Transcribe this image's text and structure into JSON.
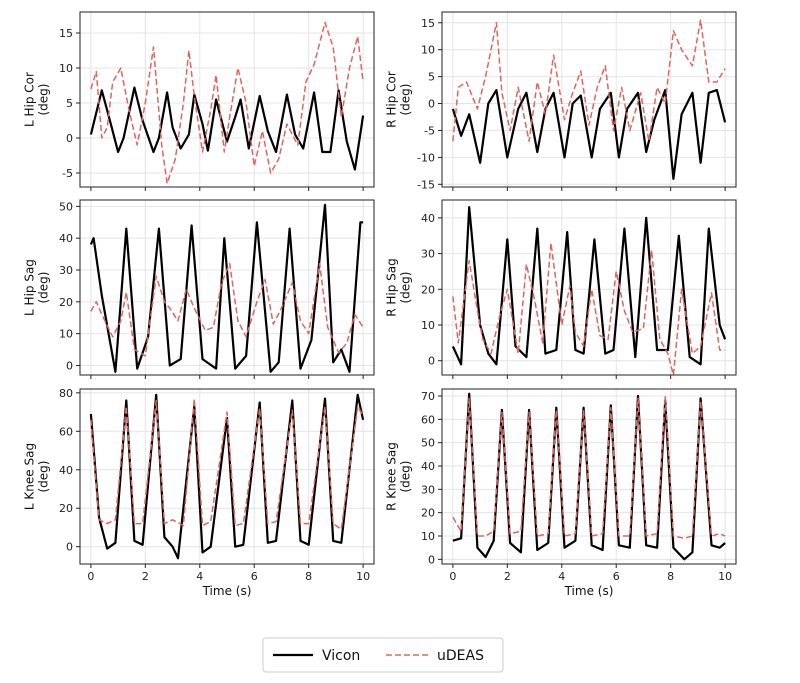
{
  "colors": {
    "vicon": "#000000",
    "udeas": "#e0665c",
    "grid": "#e4e4e4",
    "frame": "#222222"
  },
  "legend": {
    "placement": "bottom-center",
    "entries": [
      "Vicon",
      "uDEAS"
    ]
  },
  "chart_data": [
    {
      "type": "line",
      "panel": "L Hip Cor",
      "ylabel": [
        "L Hip Cor",
        "(deg)"
      ],
      "xlabel": "",
      "xlim": [
        -0.4,
        10.4
      ],
      "ylim": [
        -7,
        18
      ],
      "xticks": [
        0,
        2,
        4,
        6,
        8,
        10
      ],
      "yticks": [
        -5,
        0,
        5,
        10,
        15
      ],
      "series": [
        {
          "name": "Vicon",
          "style": "solid",
          "x": [
            0,
            0.4,
            0.7,
            1.0,
            1.2,
            1.6,
            1.9,
            2.3,
            2.5,
            2.8,
            3.0,
            3.3,
            3.6,
            3.8,
            4.1,
            4.3,
            4.6,
            5.0,
            5.3,
            5.5,
            5.8,
            6.2,
            6.5,
            6.8,
            7.2,
            7.5,
            7.8,
            8.2,
            8.5,
            8.8,
            9.1,
            9.4,
            9.7,
            10
          ],
          "y": [
            0.5,
            6.8,
            2.5,
            -2,
            0,
            7.2,
            2.5,
            -2,
            0,
            6.5,
            1.5,
            -1.5,
            0.5,
            6.2,
            2,
            -1.8,
            5.5,
            -0.5,
            3,
            5.5,
            -1.5,
            6,
            1,
            -2,
            6.2,
            0.5,
            -1.5,
            6.5,
            -2,
            -2,
            6.8,
            -0.5,
            -4.5,
            3.2
          ]
        },
        {
          "name": "uDEAS",
          "style": "dashed",
          "x": [
            0,
            0.2,
            0.4,
            0.6,
            0.8,
            1.1,
            1.4,
            1.7,
            2.0,
            2.3,
            2.6,
            2.8,
            3.1,
            3.4,
            3.6,
            3.8,
            4.1,
            4.4,
            4.6,
            4.9,
            5.1,
            5.4,
            5.7,
            6.0,
            6.3,
            6.6,
            6.9,
            7.2,
            7.6,
            7.9,
            8.2,
            8.6,
            8.9,
            9.2,
            9.5,
            9.8,
            10
          ],
          "y": [
            7,
            9.5,
            0,
            1.5,
            8,
            10,
            4,
            -1,
            5,
            13,
            -1,
            -6.5,
            -3,
            5,
            12.5,
            6,
            -2,
            4,
            9,
            -2,
            3,
            10,
            5,
            -4,
            1,
            -5,
            -3,
            2,
            -1,
            8,
            10.5,
            16.5,
            13,
            3,
            10,
            14.5,
            8
          ]
        }
      ]
    },
    {
      "type": "line",
      "panel": "R Hip Cor",
      "ylabel": [
        "R Hip Cor",
        "(deg)"
      ],
      "xlabel": "",
      "xlim": [
        -0.4,
        10.4
      ],
      "ylim": [
        -15.5,
        17
      ],
      "xticks": [
        0,
        2,
        4,
        6,
        8,
        10
      ],
      "yticks": [
        -15,
        -10,
        -5,
        0,
        5,
        10,
        15
      ],
      "series": [
        {
          "name": "Vicon",
          "style": "solid",
          "x": [
            0,
            0.3,
            0.6,
            1.0,
            1.3,
            1.6,
            2.0,
            2.4,
            2.7,
            3.1,
            3.4,
            3.7,
            4.1,
            4.4,
            4.7,
            5.1,
            5.4,
            5.8,
            6.1,
            6.4,
            6.8,
            7.1,
            7.4,
            7.8,
            8.1,
            8.4,
            8.8,
            9.1,
            9.4,
            9.7,
            10
          ],
          "y": [
            -1,
            -6,
            -2,
            -11,
            0,
            2.5,
            -10,
            -1,
            2,
            -9,
            -1,
            2,
            -10,
            0,
            1.5,
            -10,
            -1,
            2,
            -10,
            -1,
            2,
            -9,
            -3,
            2.5,
            -14,
            -2,
            2,
            -11,
            2,
            2.5,
            -3.5
          ]
        },
        {
          "name": "uDEAS",
          "style": "dashed",
          "x": [
            0,
            0.2,
            0.5,
            0.9,
            1.2,
            1.6,
            1.8,
            2.1,
            2.4,
            2.8,
            3.1,
            3.4,
            3.7,
            4.1,
            4.4,
            4.7,
            5.0,
            5.3,
            5.6,
            5.9,
            6.2,
            6.5,
            6.9,
            7.2,
            7.5,
            7.8,
            8.1,
            8.4,
            8.8,
            9.1,
            9.4,
            9.7,
            10
          ],
          "y": [
            -7,
            3,
            4,
            -1,
            5,
            15,
            2,
            -5,
            3,
            -7,
            4,
            -2,
            9,
            -3,
            2,
            6,
            -4,
            3,
            7,
            -5,
            3,
            -5,
            2,
            -7,
            3,
            0,
            13.5,
            10,
            7,
            15.5,
            4,
            4,
            6.5
          ]
        }
      ]
    },
    {
      "type": "line",
      "panel": "L Hip Sag",
      "ylabel": [
        "L Hip Sag",
        "(deg)"
      ],
      "xlabel": "",
      "xlim": [
        -0.4,
        10.4
      ],
      "ylim": [
        -3,
        52
      ],
      "xticks": [
        0,
        2,
        4,
        6,
        8,
        10
      ],
      "yticks": [
        0,
        10,
        20,
        30,
        40,
        50
      ],
      "series": [
        {
          "name": "Vicon",
          "style": "solid",
          "x": [
            0,
            0.1,
            0.4,
            0.9,
            1.3,
            1.7,
            2.1,
            2.5,
            2.9,
            3.3,
            3.7,
            4.1,
            4.6,
            4.9,
            5.3,
            5.7,
            6.1,
            6.6,
            6.9,
            7.3,
            7.7,
            8.1,
            8.6,
            8.9,
            9.2,
            9.5,
            9.9,
            10
          ],
          "y": [
            38,
            40,
            22,
            -2,
            43,
            -1,
            9,
            43,
            0,
            2,
            44,
            2,
            -1,
            40,
            -1,
            3,
            45,
            -2,
            1,
            43,
            -1,
            8,
            50.5,
            1,
            5,
            -2,
            45,
            45
          ]
        },
        {
          "name": "uDEAS",
          "style": "dashed",
          "x": [
            0,
            0.2,
            0.4,
            0.8,
            1.1,
            1.3,
            1.6,
            2.0,
            2.4,
            2.7,
            2.9,
            3.2,
            3.5,
            3.8,
            4.2,
            4.5,
            4.8,
            5.1,
            5.4,
            5.7,
            6.1,
            6.4,
            6.7,
            7.0,
            7.4,
            7.7,
            8.0,
            8.4,
            8.7,
            9.1,
            9.4,
            9.7,
            10
          ],
          "y": [
            17,
            20,
            16,
            9,
            14,
            23,
            5,
            3,
            28,
            20,
            18,
            14,
            24,
            18,
            11,
            12,
            26,
            32,
            14,
            9,
            20,
            27,
            13,
            18,
            26,
            14,
            10,
            32,
            12,
            4,
            7,
            16,
            12
          ]
        }
      ]
    },
    {
      "type": "line",
      "panel": "R Hip Sag",
      "ylabel": [
        "R Hip Sag",
        "(deg)"
      ],
      "xlabel": "",
      "xlim": [
        -0.4,
        10.4
      ],
      "ylim": [
        -4,
        45
      ],
      "xticks": [
        0,
        2,
        4,
        6,
        8,
        10
      ],
      "yticks": [
        0,
        10,
        20,
        30,
        40
      ],
      "series": [
        {
          "name": "Vicon",
          "style": "solid",
          "x": [
            0,
            0.3,
            0.6,
            1.0,
            1.3,
            1.6,
            2.0,
            2.3,
            2.7,
            3.1,
            3.4,
            3.8,
            4.2,
            4.5,
            4.8,
            5.2,
            5.6,
            5.9,
            6.3,
            6.7,
            7.1,
            7.5,
            7.9,
            8.3,
            8.7,
            9.1,
            9.4,
            9.8,
            10
          ],
          "y": [
            4,
            -1,
            43,
            10,
            2,
            -1,
            34,
            4,
            1,
            37,
            2,
            3,
            36,
            3,
            2,
            34,
            2,
            3,
            37,
            1,
            40,
            3,
            3,
            35,
            1,
            -1,
            37,
            10,
            6
          ]
        },
        {
          "name": "uDEAS",
          "style": "dashed",
          "x": [
            0,
            0.2,
            0.6,
            0.9,
            1.1,
            1.4,
            1.7,
            2.0,
            2.4,
            2.7,
            3.0,
            3.3,
            3.6,
            4.0,
            4.3,
            4.5,
            4.8,
            5.1,
            5.4,
            5.7,
            6.0,
            6.3,
            6.6,
            7.0,
            7.3,
            7.6,
            7.9,
            8.1,
            8.4,
            8.8,
            9.1,
            9.5,
            9.8,
            10
          ],
          "y": [
            18,
            5,
            28,
            14,
            6,
            2,
            12,
            20,
            2,
            27,
            17,
            5,
            33,
            10,
            21,
            8,
            4,
            20,
            7,
            6,
            25,
            14,
            8,
            9,
            31,
            6,
            2,
            -4,
            20,
            2,
            4,
            19,
            3,
            3
          ]
        }
      ]
    },
    {
      "type": "line",
      "panel": "L Knee Sag",
      "ylabel": [
        "L Knee Sag",
        "(deg)"
      ],
      "xlabel": "Time (s)",
      "xlim": [
        -0.4,
        10.4
      ],
      "ylim": [
        -9,
        82
      ],
      "xticks": [
        0,
        2,
        4,
        6,
        8,
        10
      ],
      "yticks": [
        0,
        20,
        40,
        60,
        80
      ],
      "series": [
        {
          "name": "Vicon",
          "style": "solid",
          "x": [
            0,
            0.3,
            0.6,
            0.9,
            1.3,
            1.6,
            1.9,
            2.4,
            2.7,
            3.0,
            3.2,
            3.8,
            4.1,
            4.4,
            5.0,
            5.3,
            5.6,
            6.2,
            6.5,
            6.8,
            7.4,
            7.7,
            8.0,
            8.6,
            8.9,
            9.2,
            9.8,
            10
          ],
          "y": [
            69,
            15,
            -1,
            2,
            76,
            3,
            1,
            79,
            5,
            0,
            -6,
            73,
            -3,
            0,
            67,
            0,
            1,
            75,
            2,
            3,
            76,
            3,
            1,
            77,
            3,
            2,
            79,
            66
          ]
        },
        {
          "name": "uDEAS",
          "style": "dashed",
          "x": [
            0,
            0.3,
            0.6,
            0.9,
            1.3,
            1.6,
            1.9,
            2.4,
            2.7,
            3.0,
            3.4,
            3.8,
            4.1,
            4.4,
            5.0,
            5.3,
            5.6,
            6.2,
            6.5,
            6.8,
            7.4,
            7.7,
            8.0,
            8.6,
            8.9,
            9.2,
            9.8,
            10
          ],
          "y": [
            66,
            14,
            12,
            14,
            73,
            12,
            12,
            76,
            12,
            14,
            11,
            77,
            11,
            13,
            70,
            11,
            12,
            72,
            12,
            13,
            71,
            12,
            12,
            73,
            12,
            9,
            73,
            68
          ]
        }
      ]
    },
    {
      "type": "line",
      "panel": "R Knee Sag",
      "ylabel": [
        "R Knee Sag",
        "(deg)"
      ],
      "xlabel": "Time (s)",
      "xlim": [
        -0.4,
        10.4
      ],
      "ylim": [
        -2,
        73
      ],
      "xticks": [
        0,
        2,
        4,
        6,
        8,
        10
      ],
      "yticks": [
        0,
        10,
        20,
        30,
        40,
        50,
        60,
        70
      ],
      "series": [
        {
          "name": "Vicon",
          "style": "solid",
          "x": [
            0,
            0.3,
            0.6,
            0.9,
            1.2,
            1.5,
            1.8,
            2.1,
            2.5,
            2.8,
            3.1,
            3.5,
            3.8,
            4.1,
            4.5,
            4.8,
            5.1,
            5.5,
            5.8,
            6.1,
            6.5,
            6.8,
            7.1,
            7.5,
            7.8,
            8.1,
            8.5,
            8.8,
            9.1,
            9.5,
            9.8,
            10
          ],
          "y": [
            8,
            9,
            71,
            5,
            1,
            8,
            64,
            7,
            3,
            64,
            4,
            7,
            65,
            5,
            8,
            65,
            6,
            4,
            66,
            6,
            5,
            70,
            6,
            5,
            68,
            5,
            0,
            3,
            69,
            6,
            5,
            7
          ]
        },
        {
          "name": "uDEAS",
          "style": "dashed",
          "x": [
            0,
            0.3,
            0.6,
            0.9,
            1.2,
            1.5,
            1.8,
            2.1,
            2.5,
            2.8,
            3.1,
            3.5,
            3.8,
            4.1,
            4.5,
            4.8,
            5.1,
            5.5,
            5.8,
            6.1,
            6.5,
            6.8,
            7.1,
            7.5,
            7.8,
            8.1,
            8.5,
            8.8,
            9.1,
            9.5,
            9.8,
            10
          ],
          "y": [
            18,
            12,
            69,
            10,
            10,
            12,
            63,
            11,
            12,
            63,
            10,
            11,
            64,
            10,
            11,
            64,
            10,
            11,
            65,
            10,
            10,
            69,
            10,
            11,
            70,
            10,
            9,
            10,
            68,
            10,
            11,
            10
          ]
        }
      ]
    }
  ]
}
